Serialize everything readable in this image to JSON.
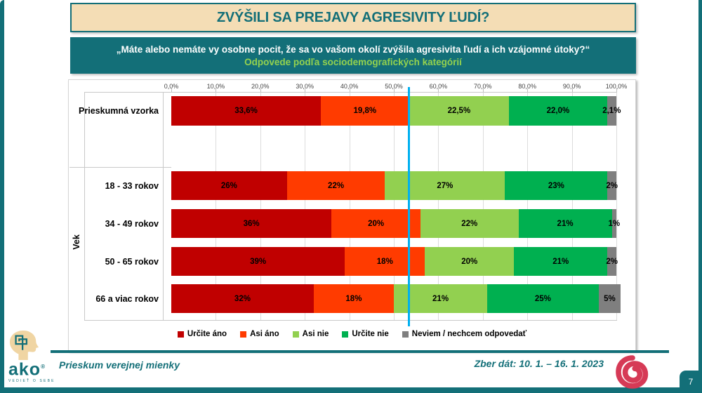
{
  "accent_colors": {
    "teal": "#136F78",
    "cream": "#F4DDB5",
    "light_green": "#94D24E",
    "spiral_red": "#D63A56",
    "logo_beige": "#F0D5A3"
  },
  "header": {
    "title": "ZVÝŠILI SA PREJAVY AGRESIVITY ĽUDÍ?"
  },
  "subheader": {
    "question": "„Máte alebo nemáte vy osobne pocit, že sa vo vašom okolí zvýšila agresivita ľudí a ich vzájomné útoky?“",
    "subtitle": "Odpovede podľa sociodemografických kategórií"
  },
  "chart_data": {
    "type": "bar",
    "orientation": "horizontal-stacked",
    "xlim": [
      0,
      100
    ],
    "x_ticks": [
      "0,0%",
      "10,0%",
      "20,0%",
      "30,0%",
      "40,0%",
      "50,0%",
      "60,0%",
      "70,0%",
      "80,0%",
      "90,0%",
      "100,0%"
    ],
    "grid": true,
    "legend_position": "bottom",
    "categories": [
      "Prieskumná vzorka",
      "18 - 33 rokov",
      "34 - 49 rokov",
      "50 - 65 rokov",
      "66 a viac rokov"
    ],
    "group_axis": {
      "label": "Vek",
      "applies_to_categories": [
        "18 - 33 rokov",
        "34 - 49 rokov",
        "50 - 65 rokov",
        "66 a viac rokov"
      ]
    },
    "series": [
      {
        "name": "Určite áno",
        "color": "#C00000",
        "values": [
          33.6,
          26,
          36,
          39,
          32
        ],
        "labels": [
          "33,6%",
          "26%",
          "36%",
          "39%",
          "32%"
        ]
      },
      {
        "name": "Asi áno",
        "color": "#FF3B00",
        "values": [
          19.8,
          22,
          20,
          18,
          18
        ],
        "labels": [
          "19,8%",
          "22%",
          "20%",
          "18%",
          "18%"
        ]
      },
      {
        "name": "Asi nie",
        "color": "#92D050",
        "values": [
          22.5,
          27,
          22,
          20,
          21
        ],
        "labels": [
          "22,5%",
          "27%",
          "22%",
          "20%",
          "21%"
        ]
      },
      {
        "name": "Určite nie",
        "color": "#00B050",
        "values": [
          22.0,
          23,
          21,
          21,
          25
        ],
        "labels": [
          "22,0%",
          "23%",
          "21%",
          "21%",
          "25%"
        ]
      },
      {
        "name": "Neviem / nechcem odpovedať",
        "color": "#7F7F7F",
        "values": [
          2.1,
          2,
          1,
          2,
          5
        ],
        "labels": [
          "2,1%",
          "2%",
          "1%",
          "2%",
          "5%"
        ]
      }
    ],
    "reference_line": {
      "value": 53.4,
      "color": "#00B0F0"
    }
  },
  "footer": {
    "left_text": "Prieskum verejnej mienky",
    "right_text": "Zber dát: 10. 1. – 16. 1. 2023",
    "page_number": "7",
    "logo_word": "ako",
    "logo_tagline": "VEDIEŤ O SEBE"
  }
}
